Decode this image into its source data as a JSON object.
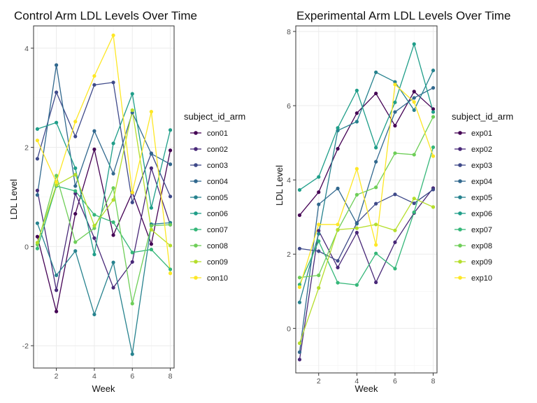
{
  "chart_data": [
    {
      "type": "line",
      "title": "Control Arm LDL Levels Over Time",
      "xlabel": "Week",
      "ylabel": "LDL Level",
      "xlim": [
        0.8,
        8.2
      ],
      "ylim": [
        -2.45,
        4.45
      ],
      "xticks": [
        2,
        4,
        6,
        8
      ],
      "yticks": [
        -2,
        0,
        2,
        4
      ],
      "legend_title": "subject_id_arm",
      "legend_position": "right",
      "grid": true,
      "x": [
        1,
        2,
        3,
        4,
        5,
        6,
        7,
        8
      ],
      "series": [
        {
          "name": "con01",
          "color": "#440154",
          "values": [
            0.2,
            -1.31,
            0.66,
            1.96,
            0.23,
            1.09,
            0.05,
            1.94
          ]
        },
        {
          "name": "con02",
          "color": "#482878",
          "values": [
            1.13,
            -0.88,
            1.07,
            0.17,
            -0.83,
            -0.31,
            1.58,
            0.44
          ]
        },
        {
          "name": "con03",
          "color": "#3e4989",
          "values": [
            1.77,
            3.11,
            2.22,
            3.26,
            3.31,
            0.89,
            1.88,
            1.01
          ]
        },
        {
          "name": "con04",
          "color": "#31688e",
          "values": [
            1.04,
            3.66,
            1.22,
            2.33,
            1.47,
            2.7,
            1.87,
            1.66
          ]
        },
        {
          "name": "con05",
          "color": "#26828e",
          "values": [
            0.47,
            -0.58,
            -0.09,
            -1.37,
            -0.32,
            -2.17,
            0.45,
            0.48
          ]
        },
        {
          "name": "con06",
          "color": "#1f9e89",
          "values": [
            2.37,
            2.5,
            1.58,
            -0.16,
            2.08,
            3.08,
            0.78,
            2.35
          ]
        },
        {
          "name": "con07",
          "color": "#35b779",
          "values": [
            -0.04,
            1.22,
            1.12,
            0.64,
            0.49,
            -0.12,
            -0.06,
            -0.46
          ]
        },
        {
          "name": "con08",
          "color": "#6ece58",
          "values": [
            0.04,
            1.43,
            0.09,
            0.37,
            1.18,
            -1.15,
            0.42,
            0.44
          ]
        },
        {
          "name": "con09",
          "color": "#b5de2b",
          "values": [
            0.08,
            1.24,
            1.45,
            0.42,
            0.94,
            2.75,
            0.34,
            0.02
          ]
        },
        {
          "name": "con10",
          "color": "#fde725",
          "values": [
            2.14,
            1.3,
            2.52,
            3.44,
            4.26,
            1.09,
            2.72,
            -0.54
          ]
        }
      ]
    },
    {
      "type": "line",
      "title": "Experimental Arm LDL Levels Over Time",
      "xlabel": "Week",
      "ylabel": "LDL Level",
      "xlim": [
        0.8,
        8.2
      ],
      "ylim": [
        -1.2,
        8.15
      ],
      "xticks": [
        2,
        4,
        6,
        8
      ],
      "yticks": [
        0,
        2,
        4,
        6,
        8
      ],
      "legend_title": "subject_id_arm",
      "legend_position": "right",
      "grid": true,
      "x": [
        1,
        2,
        3,
        4,
        5,
        6,
        7,
        8
      ],
      "series": [
        {
          "name": "exp01",
          "color": "#440154",
          "values": [
            3.05,
            3.67,
            4.84,
            5.8,
            6.33,
            5.46,
            6.38,
            5.91
          ]
        },
        {
          "name": "exp02",
          "color": "#482878",
          "values": [
            -0.84,
            2.63,
            1.64,
            2.58,
            1.24,
            2.32,
            3.11,
            3.78
          ]
        },
        {
          "name": "exp03",
          "color": "#3e4989",
          "values": [
            2.15,
            2.08,
            1.82,
            2.84,
            3.36,
            3.61,
            3.37,
            3.74
          ]
        },
        {
          "name": "exp04",
          "color": "#31688e",
          "values": [
            -0.64,
            3.34,
            3.77,
            2.82,
            4.49,
            5.83,
            6.21,
            6.48
          ]
        },
        {
          "name": "exp05",
          "color": "#26828e",
          "values": [
            0.7,
            2.55,
            5.33,
            5.57,
            6.9,
            6.64,
            5.88,
            6.95
          ]
        },
        {
          "name": "exp06",
          "color": "#1f9e89",
          "values": [
            3.73,
            4.08,
            5.4,
            6.41,
            4.87,
            6.09,
            7.66,
            5.83
          ]
        },
        {
          "name": "exp07",
          "color": "#35b779",
          "values": [
            1.18,
            2.35,
            1.23,
            1.17,
            2.02,
            1.61,
            3.13,
            4.88
          ]
        },
        {
          "name": "exp08",
          "color": "#6ece58",
          "values": [
            1.37,
            1.43,
            2.65,
            3.6,
            3.8,
            4.72,
            4.68,
            5.7
          ]
        },
        {
          "name": "exp09",
          "color": "#b5de2b",
          "values": [
            -0.4,
            1.09,
            2.66,
            2.7,
            2.8,
            2.64,
            3.5,
            3.27
          ]
        },
        {
          "name": "exp10",
          "color": "#fde725",
          "values": [
            1.11,
            2.8,
            2.8,
            4.3,
            2.25,
            6.57,
            6.1,
            4.64
          ]
        }
      ]
    }
  ]
}
